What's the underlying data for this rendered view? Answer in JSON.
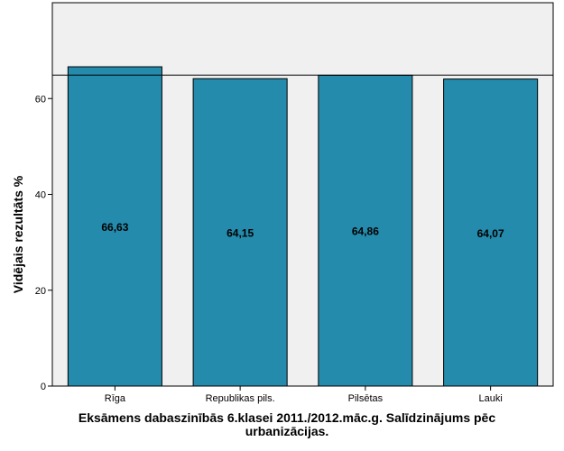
{
  "chart_data": {
    "type": "bar",
    "title": "Eksāmens dabaszinībās 6.klasei 2011./2012.māc.g. Salīdzinājums pēc urbanizācijas.",
    "xlabel": "",
    "ylabel": "Vidējais rezultāts %",
    "categories": [
      "Rīga",
      "Republikas pils.",
      "Pilsētas",
      "Lauki"
    ],
    "values": [
      66.63,
      64.15,
      64.86,
      64.07
    ],
    "value_labels": [
      "66,63",
      "64,15",
      "64,86",
      "64,07"
    ],
    "ylim": [
      0,
      80
    ],
    "yticks": [
      0,
      20,
      40,
      60
    ],
    "reference_line": 64.9,
    "grid": false,
    "colors": {
      "bar": "#248bac",
      "background": "#f0f0f0"
    }
  }
}
